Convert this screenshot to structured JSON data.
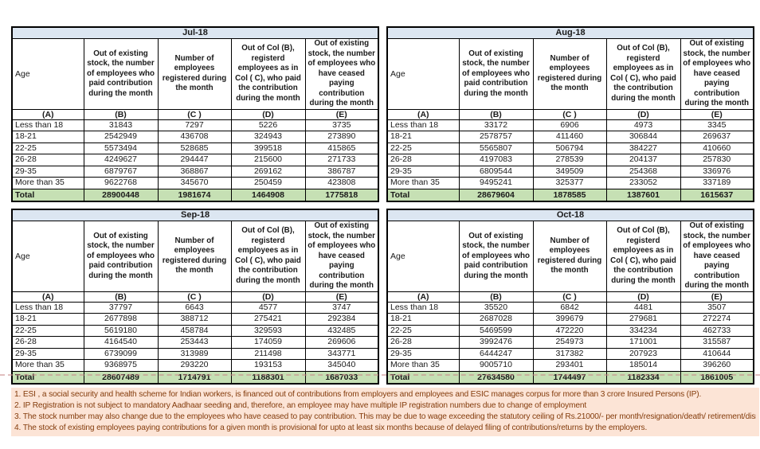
{
  "columns": [
    "Age",
    "Out of existing stock, the number of employees who paid contribution during the month",
    "Number of employees registered during the month",
    "Out of Col (B), registerd employees as in Col ( C), who paid the contribution during the month",
    "Out of existing stock, the number of employees who have ceased paying contribution during the month"
  ],
  "col_letters": [
    "(A)",
    "(B)",
    "(C )",
    "(D)",
    "(E)"
  ],
  "tables": [
    {
      "title": "Jul-18",
      "rows": [
        [
          "Less than 18",
          "31843",
          "7297",
          "5226",
          "3735"
        ],
        [
          "18-21",
          "2542949",
          "436708",
          "324943",
          "273890"
        ],
        [
          "22-25",
          "5573494",
          "528685",
          "399518",
          "415865"
        ],
        [
          "26-28",
          "4249627",
          "294447",
          "215600",
          "271733"
        ],
        [
          "29-35",
          "6879767",
          "368867",
          "269162",
          "386787"
        ],
        [
          "More than 35",
          "9622768",
          "345670",
          "250459",
          "423808"
        ]
      ],
      "total": [
        "Total",
        "28900448",
        "1981674",
        "1464908",
        "1775818"
      ]
    },
    {
      "title": "Aug-18",
      "rows": [
        [
          "Less than 18",
          "33172",
          "6906",
          "4973",
          "3345"
        ],
        [
          "18-21",
          "2578757",
          "411460",
          "306844",
          "269637"
        ],
        [
          "22-25",
          "5565807",
          "506794",
          "384227",
          "410660"
        ],
        [
          "26-28",
          "4197083",
          "278539",
          "204137",
          "257830"
        ],
        [
          "29-35",
          "6809544",
          "349509",
          "254368",
          "336976"
        ],
        [
          "More than 35",
          "9495241",
          "325377",
          "233052",
          "337189"
        ]
      ],
      "total": [
        "Total",
        "28679604",
        "1878585",
        "1387601",
        "1615637"
      ]
    },
    {
      "title": "Sep-18",
      "rows": [
        [
          "Less than 18",
          "37797",
          "6643",
          "4577",
          "3747"
        ],
        [
          "18-21",
          "2677898",
          "388712",
          "275421",
          "292384"
        ],
        [
          "22-25",
          "5619180",
          "458784",
          "329593",
          "432485"
        ],
        [
          "26-28",
          "4164540",
          "253443",
          "174059",
          "269606"
        ],
        [
          "29-35",
          "6739099",
          "313989",
          "211498",
          "343771"
        ],
        [
          "More than 35",
          "9368975",
          "293220",
          "193153",
          "345040"
        ]
      ],
      "total": [
        "Total",
        "28607489",
        "1714791",
        "1188301",
        "1687033"
      ]
    },
    {
      "title": "Oct-18",
      "rows": [
        [
          "Less than 18",
          "35520",
          "6842",
          "4481",
          "3507"
        ],
        [
          "18-21",
          "2687028",
          "399679",
          "279681",
          "272274"
        ],
        [
          "22-25",
          "5469599",
          "472220",
          "334234",
          "462733"
        ],
        [
          "26-28",
          "3992476",
          "254973",
          "171001",
          "315587"
        ],
        [
          "29-35",
          "6444247",
          "317382",
          "207923",
          "410644"
        ],
        [
          "More than 35",
          "9005710",
          "293401",
          "185014",
          "396260"
        ]
      ],
      "total": [
        "Total",
        "27634580",
        "1744497",
        "1182334",
        "1861005"
      ]
    }
  ],
  "footnotes": [
    "1. ESI , a social security and health scheme for Indian workers, is financed out of contributions from employers and employees and ESIC manages corpus for more than 3 crore Insured Persons (IP).",
    "2. IP Registration is not subject to mandatory Aadhaar seeding and, therefore, an employee may have multiple IP registration numbers due to change of employment",
    "3. The stock number may also change due to the employees who have ceased to pay contribution. This may be due to wage exceeding the statutory ceiling of Rs.21000/- per month/resignation/death/ retirement/dismissal.",
    "4. The stock of existing employees paying contributions for a given month is provisional for upto at least six months because of delayed filing of contributions/returns by the employers."
  ],
  "colors": {
    "table_title_bg": "#dce6f1",
    "total_row_bg": "#c6e0b4",
    "notes_bg": "#fce4d6",
    "notes_text": "#843c0c",
    "border": "#000000"
  }
}
